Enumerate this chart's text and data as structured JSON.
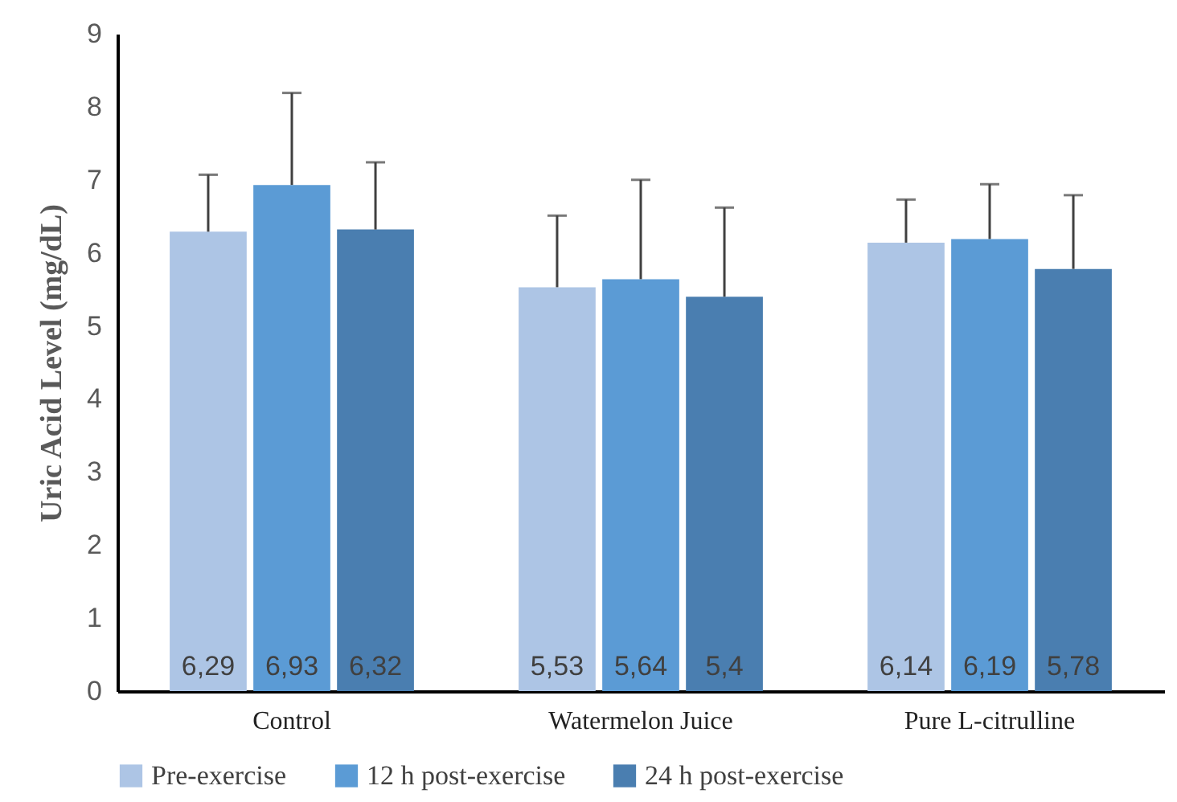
{
  "chart_data": {
    "type": "bar",
    "ylabel": "Uric Acid Level (mg/dL)",
    "categories": [
      "Control",
      "Watermelon Juice",
      "Pure L-citrulline"
    ],
    "series": [
      {
        "name": "Pre-exercise",
        "color": "#adc5e5",
        "values": [
          6.29,
          5.53,
          6.14
        ],
        "value_labels": [
          "6,29",
          "5,53",
          "6,14"
        ],
        "errors": [
          [
            6.29,
            7.07
          ],
          [
            5.53,
            6.51
          ],
          [
            6.14,
            6.73
          ]
        ]
      },
      {
        "name": "12 h post-exercise",
        "color": "#5b9bd5",
        "values": [
          6.93,
          5.64,
          6.19
        ],
        "value_labels": [
          "6,93",
          "5,64",
          "6,19"
        ],
        "errors": [
          [
            6.93,
            8.19
          ],
          [
            5.64,
            7.0
          ],
          [
            6.19,
            6.94
          ]
        ]
      },
      {
        "name": "24 h post-exercise",
        "color": "#4a7eb0",
        "values": [
          6.32,
          5.4,
          5.78
        ],
        "value_labels": [
          "6,32",
          "5,4",
          "5,78"
        ],
        "errors": [
          [
            6.32,
            7.24
          ],
          [
            5.4,
            6.62
          ],
          [
            5.78,
            6.79
          ]
        ]
      }
    ],
    "ylim": [
      0,
      9
    ],
    "yticks": [
      0,
      1,
      2,
      3,
      4,
      5,
      6,
      7,
      8,
      9
    ],
    "grid": false,
    "legend": "bottom"
  }
}
